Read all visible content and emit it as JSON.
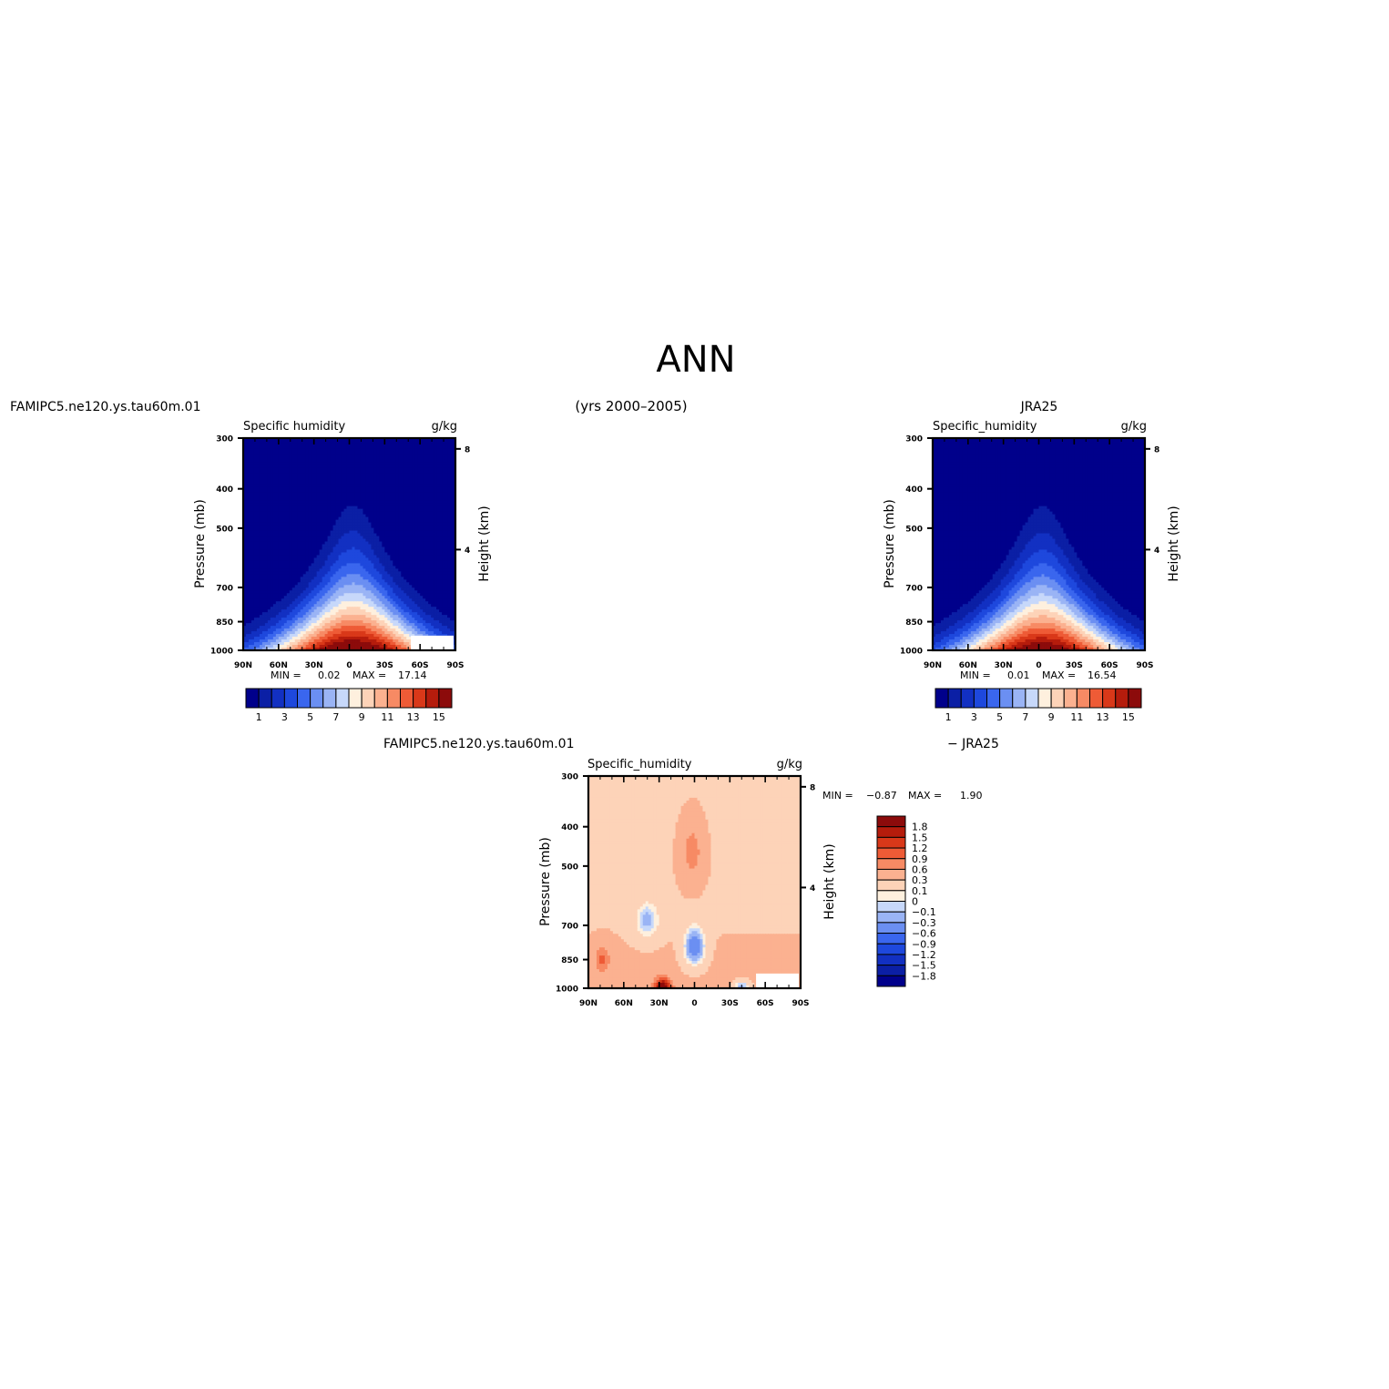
{
  "page": {
    "title": "ANN",
    "years": "(yrs 2000–2005)"
  },
  "chart_data": [
    {
      "type": "heatmap",
      "panel": "model",
      "case_label": "FAMIPC5.ne120.ys.tau60m.01",
      "title_left": "Specific humidity",
      "title_right": "g/kg",
      "ylabel": "Pressure (mb)",
      "ylabel_right": "Height (km)",
      "x_ticks": [
        "90N",
        "60N",
        "30N",
        "0",
        "30S",
        "60S",
        "90S"
      ],
      "y_ticks": [
        300,
        400,
        500,
        700,
        850,
        1000
      ],
      "y_right_ticks": [
        8,
        4
      ],
      "ylim": [
        1000,
        300
      ],
      "stats": {
        "min_label": "MIN =",
        "min": "0.02",
        "max_label": "MAX =",
        "max": "17.14"
      },
      "peak": 17.14,
      "colorbar_labels": [
        "1",
        "3",
        "5",
        "7",
        "9",
        "11",
        "13",
        "15"
      ],
      "colorbar_levels": [
        0,
        1,
        2,
        3,
        4,
        5,
        6,
        7,
        8,
        9,
        10,
        11,
        12,
        13,
        14,
        15,
        16
      ],
      "colors": [
        "#00008b",
        "#0b1fa5",
        "#1230c2",
        "#1e48dd",
        "#3a66ee",
        "#6b8ff2",
        "#9ab4f5",
        "#c7d8fa",
        "#fef0de",
        "#fdd3b8",
        "#fbb190",
        "#f78a64",
        "#ee5b36",
        "#d93819",
        "#b51c0c",
        "#8c0b0b"
      ]
    },
    {
      "type": "heatmap",
      "panel": "obs",
      "case_label": "JRA25",
      "title_left": "Specific_humidity",
      "title_right": "g/kg",
      "ylabel": "Pressure (mb)",
      "ylabel_right": "Height (km)",
      "x_ticks": [
        "90N",
        "60N",
        "30N",
        "0",
        "30S",
        "60S",
        "90S"
      ],
      "y_ticks": [
        300,
        400,
        500,
        700,
        850,
        1000
      ],
      "y_right_ticks": [
        8,
        4
      ],
      "ylim": [
        1000,
        300
      ],
      "stats": {
        "min_label": "MIN =",
        "min": "0.01",
        "max_label": "MAX =",
        "max": "16.54"
      },
      "peak": 16.54,
      "colorbar_labels": [
        "1",
        "3",
        "5",
        "7",
        "9",
        "11",
        "13",
        "15"
      ],
      "colorbar_levels": [
        0,
        1,
        2,
        3,
        4,
        5,
        6,
        7,
        8,
        9,
        10,
        11,
        12,
        13,
        14,
        15,
        16
      ],
      "colors": [
        "#00008b",
        "#0b1fa5",
        "#1230c2",
        "#1e48dd",
        "#3a66ee",
        "#6b8ff2",
        "#9ab4f5",
        "#c7d8fa",
        "#fef0de",
        "#fdd3b8",
        "#fbb190",
        "#f78a64",
        "#ee5b36",
        "#d93819",
        "#b51c0c",
        "#8c0b0b"
      ]
    },
    {
      "type": "heatmap",
      "panel": "difference",
      "case_label": "FAMIPC5.ne120.ys.tau60m.01",
      "case_label_right": "− JRA25",
      "title_left": "Specific_humidity",
      "title_right": "g/kg",
      "ylabel": "Pressure (mb)",
      "ylabel_right": "Height (km)",
      "x_ticks": [
        "90N",
        "60N",
        "30N",
        "0",
        "30S",
        "60S",
        "90S"
      ],
      "y_ticks": [
        300,
        400,
        500,
        700,
        850,
        1000
      ],
      "y_right_ticks": [
        8,
        4
      ],
      "ylim": [
        1000,
        300
      ],
      "stats": {
        "min_label": "MIN =",
        "min": "−0.87",
        "max_label": "MAX =",
        "max": "1.90"
      },
      "colorbar_labels": [
        "1.8",
        "1.5",
        "1.2",
        "0.9",
        "0.6",
        "0.3",
        "0.1",
        "0",
        "−0.1",
        "−0.3",
        "−0.6",
        "−0.9",
        "−1.2",
        "−1.5",
        "−1.8"
      ],
      "colors": [
        "#8c0b0b",
        "#b51c0c",
        "#d93819",
        "#ee5b36",
        "#f78a64",
        "#fbb190",
        "#fdd3b8",
        "#fef0de",
        "#c7d8fa",
        "#9ab4f5",
        "#6b8ff2",
        "#3a66ee",
        "#1e48dd",
        "#1230c2",
        "#0b1fa5",
        "#00008b"
      ]
    }
  ]
}
